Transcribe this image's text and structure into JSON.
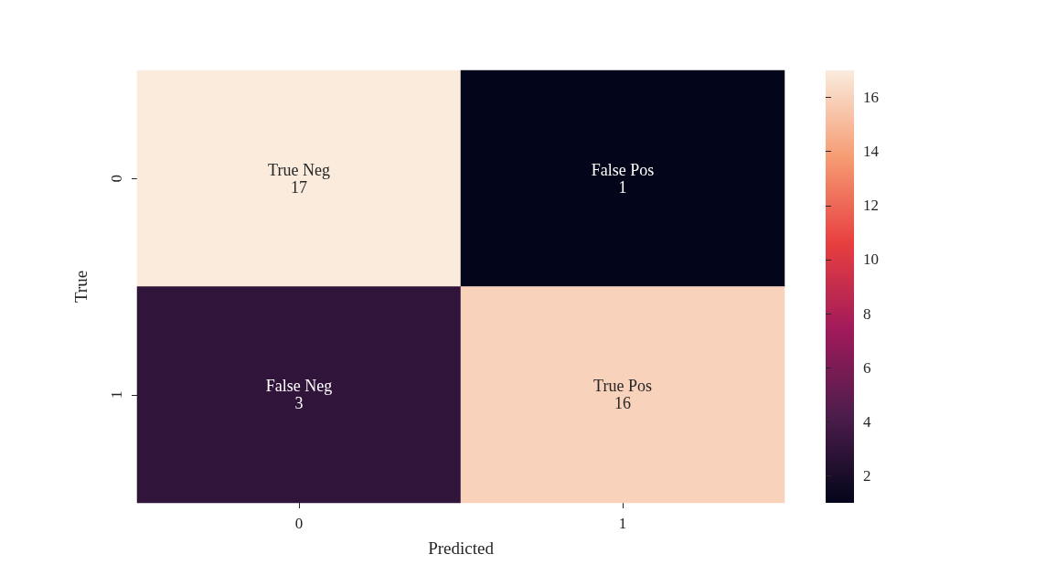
{
  "chart_data": {
    "type": "heatmap",
    "xlabel": "Predicted",
    "ylabel": "True",
    "categories": [
      "0",
      "1"
    ],
    "y_categories": [
      "0",
      "1"
    ],
    "cells": [
      [
        17,
        1
      ],
      [
        3,
        16
      ]
    ],
    "cell_labels": [
      [
        "True Neg\n17",
        "False Pos\n1"
      ],
      [
        "False Neg\n3",
        "True Pos\n16"
      ]
    ],
    "clim": [
      1,
      17
    ],
    "cticks": [
      2,
      4,
      6,
      8,
      10,
      12,
      14,
      16
    ]
  }
}
